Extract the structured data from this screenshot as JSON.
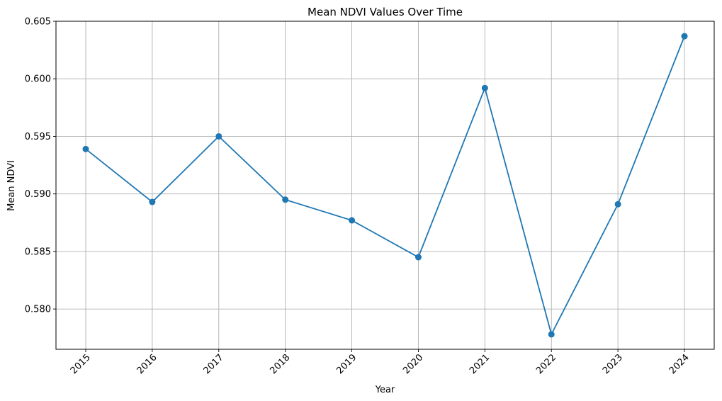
{
  "chart_data": {
    "type": "line",
    "title": "Mean NDVI Values Over Time",
    "xlabel": "Year",
    "ylabel": "Mean NDVI",
    "x": [
      "2015",
      "2016",
      "2017",
      "2018",
      "2019",
      "2020",
      "2021",
      "2022",
      "2023",
      "2024"
    ],
    "series": [
      {
        "values": [
          0.5939,
          0.5893,
          0.595,
          0.5895,
          0.5877,
          0.5845,
          0.5992,
          0.5778,
          0.5891,
          0.6037
        ],
        "color": "#1f77b4",
        "marker": "circle"
      }
    ],
    "ylim": [
      0.5765,
      0.605
    ],
    "yticks": [
      "0.580",
      "0.585",
      "0.590",
      "0.595",
      "0.600",
      "0.605"
    ],
    "grid": true,
    "xtick_rotation": 45
  }
}
